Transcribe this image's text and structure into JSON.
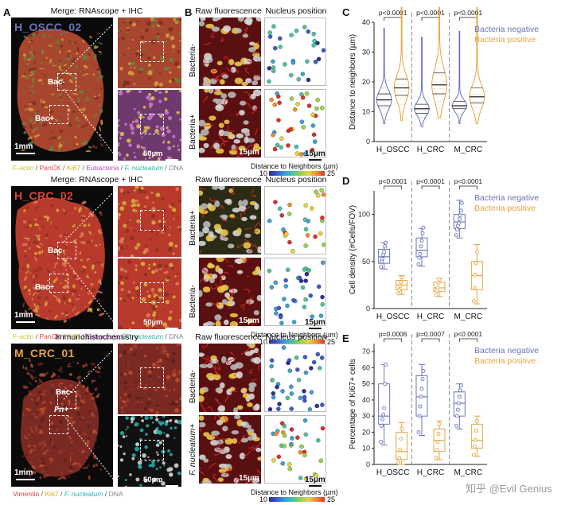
{
  "panelA": {
    "letter": "A",
    "rows": [
      {
        "header": "Merge: RNAscope + IHC",
        "sample": "H_OSCC_02",
        "bac_plus": "Bac+",
        "bac_minus": "Bac-",
        "scale_main": "1mm",
        "scale_inset": "50µm",
        "legend": [
          {
            "text": "F-actin",
            "color": "#c9c935"
          },
          {
            "text": " / ",
            "color": "#555"
          },
          {
            "text": "PanCK",
            "color": "#e0443a"
          },
          {
            "text": " / ",
            "color": "#555"
          },
          {
            "text": "Ki67",
            "color": "#d6b11c"
          },
          {
            "text": " / ",
            "color": "#555"
          },
          {
            "text": "Eubacteria",
            "color": "#b84dc4"
          },
          {
            "text": " / ",
            "color": "#555"
          },
          {
            "text": "F. nucleatum",
            "color": "#25b5b0"
          },
          {
            "text": " / ",
            "color": "#555"
          },
          {
            "text": "DNA",
            "color": "#888888"
          }
        ]
      },
      {
        "header": "Merge: RNAscope + IHC",
        "sample": "H_CRC_02",
        "bac_plus": "Bac+",
        "bac_minus": "Bac-",
        "scale_main": "1mm",
        "scale_inset": "50µm",
        "legend": [
          {
            "text": "F-actin",
            "color": "#c9c935"
          },
          {
            "text": " / ",
            "color": "#555"
          },
          {
            "text": "PanCK",
            "color": "#e0443a"
          },
          {
            "text": " / ",
            "color": "#555"
          },
          {
            "text": "Ki67",
            "color": "#d6b11c"
          },
          {
            "text": " / ",
            "color": "#555"
          },
          {
            "text": "Eubacteria",
            "color": "#b84dc4"
          },
          {
            "text": " / ",
            "color": "#555"
          },
          {
            "text": "F. nucleatum",
            "color": "#25b5b0"
          },
          {
            "text": " / ",
            "color": "#555"
          },
          {
            "text": "DNA",
            "color": "#888888"
          }
        ]
      },
      {
        "header": "Immunohistochemistry",
        "sample": "M_CRC_01",
        "bac_plus": "Fn+",
        "bac_minus": "Bac-",
        "scale_main": "1mm",
        "scale_inset": "50µm",
        "legend": [
          {
            "text": "Vimentin",
            "color": "#e0443a"
          },
          {
            "text": " / ",
            "color": "#555"
          },
          {
            "text": "Ki67",
            "color": "#d6b11c"
          },
          {
            "text": " / ",
            "color": "#555"
          },
          {
            "text": "F. nucleatum",
            "color": "#25b5b0"
          },
          {
            "text": " / ",
            "color": "#555"
          },
          {
            "text": "DNA",
            "color": "#888888"
          }
        ]
      }
    ]
  },
  "panelB": {
    "letter": "B",
    "col_raw": "Raw fluorescence",
    "col_nuc": "Nucleus position",
    "scale": "15µm",
    "cbar_label": "Distance to Neighbors (µm)",
    "cbar_min": "10",
    "cbar_max": "25",
    "rows": [
      {
        "top": "Bacteria-",
        "bottom": "Bacteria+"
      },
      {
        "top": "Bacteria+",
        "bottom": "Bacteria-"
      },
      {
        "top": "Bacteria-",
        "bottom": "F. nucleatum+"
      }
    ]
  },
  "colors": {
    "negative": "#6b74b8",
    "positive": "#e9a440"
  },
  "legend": {
    "negative": "Bacteria negative",
    "positive": "Bacteria positive"
  },
  "chart_data": [
    {
      "panel": "C",
      "type": "violin",
      "categories": [
        "H_OSCC",
        "H_CRC",
        "M_CRC"
      ],
      "ylabel": "Distance to neighbors (µm)",
      "ylim": [
        0,
        40
      ],
      "yticks": [
        0,
        10,
        20,
        30,
        40
      ],
      "pvalues": [
        "p<0.0001",
        "p<0.0001",
        "p<0.0001"
      ],
      "series": [
        {
          "name": "Bacteria negative",
          "medians": [
            14,
            11,
            12
          ],
          "q1": [
            12,
            9.5,
            11
          ],
          "q3": [
            16,
            12.5,
            13.5
          ],
          "min": [
            6,
            5,
            6
          ],
          "max": [
            38,
            35,
            37
          ]
        },
        {
          "name": "Bacteria positive",
          "medians": [
            18,
            19,
            15
          ],
          "q1": [
            15.5,
            16,
            13
          ],
          "q3": [
            21,
            23,
            18
          ],
          "min": [
            7,
            8,
            6
          ],
          "max": [
            45,
            45,
            45
          ]
        }
      ]
    },
    {
      "panel": "D",
      "type": "box",
      "categories": [
        "H_OSCC",
        "H_CRC",
        "M_CRC"
      ],
      "ylabel": "Cell density (#Cells/FOV)",
      "ylim": [
        0,
        125
      ],
      "yticks": [
        0,
        50,
        100
      ],
      "pvalues": [
        "p<0.0001",
        "p<0.0001",
        "p<0.0001"
      ],
      "series": [
        {
          "name": "Bacteria negative",
          "box": [
            {
              "min": 42,
              "q1": 48,
              "med": 55,
              "q3": 63,
              "max": 70
            },
            {
              "min": 45,
              "q1": 55,
              "med": 62,
              "q3": 75,
              "max": 85
            },
            {
              "min": 75,
              "q1": 85,
              "med": 92,
              "q3": 100,
              "max": 115
            }
          ],
          "points": [
            [
              44,
              50,
              53,
              57,
              60,
              66,
              70
            ],
            [
              47,
              54,
              58,
              66,
              72,
              80,
              86
            ],
            [
              78,
              84,
              88,
              91,
              95,
              99,
              104,
              112
            ]
          ]
        },
        {
          "name": "Bacteria positive",
          "box": [
            {
              "min": 15,
              "q1": 20,
              "med": 25,
              "q3": 30,
              "max": 35
            },
            {
              "min": 13,
              "q1": 18,
              "med": 22,
              "q3": 28,
              "max": 32
            },
            {
              "min": 5,
              "q1": 20,
              "med": 35,
              "q3": 50,
              "max": 68
            }
          ],
          "points": [
            [
              16,
              20,
              24,
              28,
              33
            ],
            [
              14,
              19,
              22,
              27,
              31
            ],
            [
              8,
              22,
              36,
              48,
              60
            ]
          ]
        }
      ]
    },
    {
      "panel": "E",
      "type": "box",
      "categories": [
        "H_OSCC",
        "H_CRC",
        "M_CRC"
      ],
      "ylabel": "Percentage of Ki67+ cells",
      "ylim": [
        0,
        75
      ],
      "yticks": [
        0,
        10,
        20,
        30,
        40,
        50,
        60,
        70
      ],
      "pvalues": [
        "p=0.0006",
        "p=0.0007",
        "p<0.0001"
      ],
      "series": [
        {
          "name": "Bacteria negative",
          "box": [
            {
              "min": 12,
              "q1": 25,
              "med": 30,
              "q3": 50,
              "max": 62
            },
            {
              "min": 18,
              "q1": 30,
              "med": 42,
              "q3": 55,
              "max": 62
            },
            {
              "min": 22,
              "q1": 30,
              "med": 38,
              "q3": 45,
              "max": 50
            }
          ],
          "points": [
            [
              14,
              24,
              28,
              31,
              35,
              50,
              62
            ],
            [
              20,
              30,
              36,
              42,
              47,
              53,
              58
            ],
            [
              24,
              30,
              34,
              38,
              42,
              46,
              49
            ]
          ]
        },
        {
          "name": "Bacteria positive",
          "box": [
            {
              "min": 0,
              "q1": 3,
              "med": 8,
              "q3": 20,
              "max": 26
            },
            {
              "min": 3,
              "q1": 8,
              "med": 15,
              "q3": 22,
              "max": 27
            },
            {
              "min": 5,
              "q1": 10,
              "med": 15,
              "q3": 25,
              "max": 30
            }
          ],
          "points": [
            [
              1,
              4,
              9,
              16,
              22
            ],
            [
              4,
              9,
              14,
              19,
              25
            ],
            [
              6,
              11,
              15,
              21,
              27
            ]
          ]
        }
      ]
    }
  ],
  "watermark": "知乎 @Evil Genius"
}
